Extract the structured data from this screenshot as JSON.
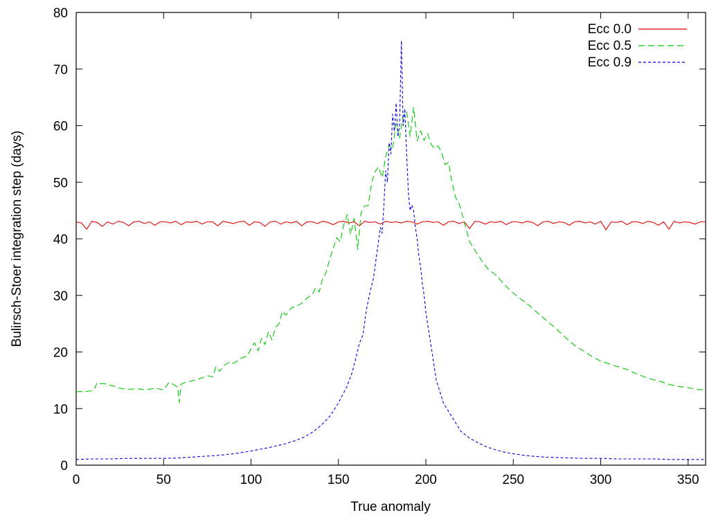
{
  "chart_data": {
    "type": "line",
    "title": "",
    "xlabel": "True anomaly",
    "ylabel": "Bulirsch-Stoer integration step (days)",
    "xlim": [
      0,
      360
    ],
    "ylim": [
      0,
      80
    ],
    "xticks": [
      0,
      50,
      100,
      150,
      200,
      250,
      300,
      350
    ],
    "yticks": [
      0,
      10,
      20,
      30,
      40,
      50,
      60,
      70,
      80
    ],
    "grid": false,
    "legend_position": "top-right",
    "series": [
      {
        "name": "Ecc 0.0",
        "color": "#e00000",
        "dash": "solid",
        "x": [
          0,
          3,
          6,
          9,
          12,
          15,
          18,
          21,
          24,
          27,
          30,
          33,
          36,
          39,
          42,
          45,
          48,
          51,
          54,
          57,
          60,
          63,
          66,
          69,
          72,
          75,
          78,
          81,
          84,
          87,
          90,
          93,
          96,
          99,
          102,
          105,
          108,
          111,
          114,
          117,
          120,
          123,
          126,
          129,
          132,
          135,
          138,
          141,
          144,
          147,
          150,
          153,
          156,
          159,
          162,
          165,
          168,
          171,
          174,
          177,
          180,
          183,
          186,
          189,
          192,
          195,
          198,
          201,
          204,
          207,
          210,
          213,
          216,
          219,
          222,
          225,
          228,
          231,
          234,
          237,
          240,
          243,
          246,
          249,
          252,
          255,
          258,
          261,
          264,
          267,
          270,
          273,
          276,
          279,
          282,
          285,
          288,
          291,
          294,
          297,
          300,
          303,
          306,
          309,
          312,
          315,
          318,
          321,
          324,
          327,
          330,
          333,
          336,
          339,
          342,
          345,
          348,
          351,
          354,
          357,
          360
        ],
        "y": [
          43,
          42.8,
          41.7,
          43.1,
          42.9,
          42.2,
          43,
          42.6,
          43.1,
          42.9,
          42.3,
          43,
          43.1,
          42.7,
          43,
          42.4,
          43,
          43,
          42.8,
          43.1,
          42.5,
          43,
          42.9,
          43.1,
          42.6,
          43,
          43,
          42.3,
          43.1,
          42.9,
          42.7,
          43,
          43.1,
          42.4,
          43,
          42.9,
          42.2,
          43,
          43.1,
          42.6,
          43,
          42.8,
          43.1,
          42.3,
          43,
          43,
          42.7,
          43.1,
          42.9,
          42.5,
          43,
          43.1,
          42.8,
          43,
          42.3,
          43.1,
          42.9,
          43,
          42.6,
          43.1,
          42.9,
          43,
          42.8,
          43.1,
          43,
          42.6,
          43,
          43.1,
          42.9,
          43,
          42.4,
          43,
          43.1,
          42.7,
          43,
          41.8,
          43.1,
          43,
          42.6,
          43,
          42.9,
          43.1,
          42.5,
          43,
          43,
          42.8,
          43.1,
          42.9,
          42.3,
          43,
          43.1,
          42.7,
          43,
          42.9,
          42.4,
          43,
          43.1,
          42.8,
          43,
          42.6,
          43.1,
          41.6,
          43,
          42.9,
          43.1,
          42.5,
          43,
          43,
          42.7,
          43.1,
          42.9,
          42.4,
          43,
          41.7,
          43.1,
          42.8,
          43,
          42.9,
          42.6,
          43,
          43
        ]
      },
      {
        "name": "Ecc 0.5",
        "color": "#00c800",
        "dash": "9,5",
        "x": [
          0,
          5,
          10,
          12,
          14,
          16,
          20,
          25,
          30,
          35,
          40,
          45,
          50,
          53,
          55,
          58,
          59,
          60,
          62,
          65,
          70,
          75,
          78,
          80,
          82,
          85,
          88,
          90,
          95,
          98,
          100,
          102,
          104,
          106,
          108,
          110,
          112,
          114,
          116,
          118,
          120,
          123,
          126,
          129,
          132,
          135,
          137,
          139,
          141,
          143,
          145,
          147,
          149,
          151,
          153,
          155,
          157,
          159,
          161,
          163,
          165,
          167,
          169,
          171,
          173,
          175,
          177,
          179,
          181,
          183,
          185,
          187,
          189,
          191,
          193,
          195,
          197,
          199,
          201,
          203,
          205,
          207,
          209,
          211,
          213,
          215,
          217,
          219,
          221,
          223,
          225,
          228,
          232,
          236,
          240,
          245,
          250,
          255,
          260,
          265,
          270,
          275,
          280,
          285,
          290,
          295,
          300,
          305,
          310,
          315,
          320,
          325,
          330,
          335,
          340,
          345,
          350,
          355,
          360
        ],
        "y": [
          13,
          13,
          13.2,
          14.6,
          14.4,
          14.4,
          14.1,
          13.6,
          13.4,
          13.5,
          13.3,
          13.6,
          13.3,
          14.6,
          14.4,
          13.8,
          11.1,
          14.3,
          14.6,
          14.8,
          15.2,
          15.8,
          15.6,
          17.4,
          16.6,
          17.7,
          18.3,
          18.0,
          19.0,
          19.3,
          20.6,
          21.6,
          20.2,
          22.4,
          21.3,
          23.6,
          22.1,
          24.3,
          25.0,
          27.2,
          26.5,
          27.8,
          28.1,
          28.6,
          29.5,
          30.1,
          31.3,
          30.6,
          33.0,
          34.1,
          36.4,
          38.3,
          40.2,
          39.5,
          42.4,
          44.3,
          40.8,
          43.6,
          38.1,
          44.7,
          45.8,
          45.9,
          49.9,
          51.9,
          52.7,
          50.8,
          54.5,
          56.6,
          55.9,
          60.4,
          57.8,
          61.7,
          62.5,
          58.1,
          63.2,
          57.3,
          59.1,
          57.4,
          58.6,
          56.7,
          56.0,
          56.4,
          55.3,
          53.1,
          53.5,
          49.9,
          47.3,
          46.2,
          44.1,
          41.8,
          39.5,
          38.0,
          36.1,
          34.5,
          33.6,
          31.9,
          30.4,
          29.2,
          28.0,
          26.6,
          25.3,
          24.0,
          22.5,
          21.2,
          20.2,
          19.2,
          18.4,
          17.9,
          17.4,
          16.9,
          16.2,
          15.6,
          15.1,
          14.7,
          14.2,
          13.9,
          13.7,
          13.4,
          13.3
        ]
      },
      {
        "name": "Ecc 0.9",
        "color": "#0000e0",
        "dash": "4,3",
        "x": [
          0,
          10,
          20,
          30,
          40,
          50,
          60,
          70,
          80,
          90,
          100,
          110,
          120,
          125,
          130,
          135,
          140,
          145,
          150,
          155,
          158,
          160,
          162,
          164,
          166,
          168,
          170,
          172,
          174,
          175,
          176,
          177,
          178,
          179,
          180,
          181,
          182,
          183,
          184,
          185,
          186,
          187,
          188,
          189,
          190,
          191,
          192,
          193,
          194,
          195,
          196,
          197,
          198,
          199,
          200,
          201,
          202,
          203,
          204,
          205,
          206,
          208,
          210,
          212,
          214,
          216,
          218,
          220,
          222,
          225,
          230,
          235,
          240,
          245,
          250,
          255,
          260,
          270,
          280,
          290,
          300,
          310,
          320,
          330,
          340,
          350,
          360
        ],
        "y": [
          1.0,
          1.1,
          1.1,
          1.2,
          1.2,
          1.2,
          1.3,
          1.5,
          1.7,
          2.0,
          2.5,
          3.1,
          3.8,
          4.3,
          4.9,
          5.8,
          7.0,
          8.6,
          11.0,
          14.0,
          16.5,
          19.0,
          21.5,
          23.0,
          27.5,
          30.5,
          33.0,
          37.5,
          42.0,
          41.0,
          46.0,
          52.0,
          50.0,
          57.0,
          55.0,
          62.0,
          59.0,
          64.0,
          58.0,
          60.0,
          75.0,
          60.0,
          63.0,
          55.0,
          48.0,
          45.0,
          46.0,
          45.0,
          42.0,
          40.0,
          37.0,
          35.0,
          32.0,
          30.0,
          27.0,
          25.0,
          23.0,
          21.0,
          19.0,
          17.0,
          15.0,
          13.0,
          11.0,
          10.0,
          9.0,
          8.0,
          7.0,
          6.0,
          5.5,
          4.8,
          3.9,
          3.2,
          2.7,
          2.3,
          2.0,
          1.8,
          1.6,
          1.4,
          1.3,
          1.2,
          1.2,
          1.1,
          1.1,
          1.1,
          1.0,
          1.0,
          1.0
        ]
      }
    ]
  }
}
